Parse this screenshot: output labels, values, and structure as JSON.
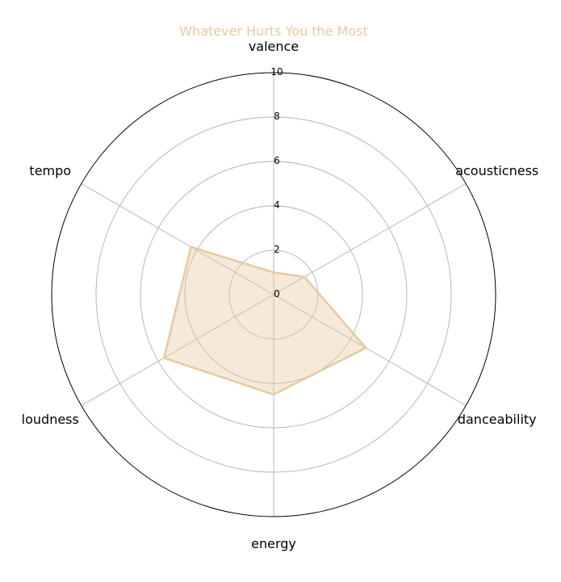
{
  "chart_data": {
    "type": "radar",
    "title": "Whatever Hurts You the Most",
    "title_color": "#E8C9A0",
    "categories": [
      "valence",
      "acousticness",
      "danceability",
      "energy",
      "loudness",
      "tempo"
    ],
    "series": [
      {
        "values": [
          1.0,
          1.6,
          4.8,
          4.5,
          5.7,
          4.3
        ],
        "color": "#E8C9A0"
      }
    ],
    "rlim": [
      0,
      10
    ],
    "r_ticks": [
      0,
      2,
      4,
      6,
      8,
      10
    ],
    "grid": true
  }
}
